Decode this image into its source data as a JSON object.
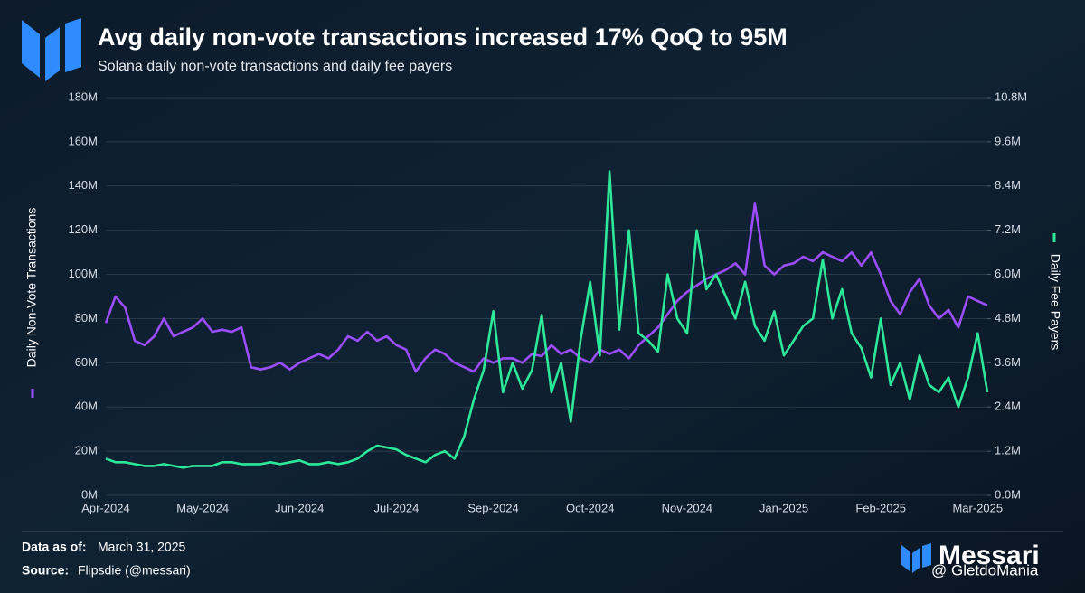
{
  "chart_data": {
    "type": "line",
    "title": "Avg daily non-vote transactions increased 17% QoQ to 95M",
    "subtitle": "Solana daily non-vote transactions and daily fee payers",
    "categories": [
      "Apr-2024",
      null,
      null,
      null,
      null,
      null,
      null,
      null,
      null,
      null,
      "May-2024",
      null,
      null,
      null,
      null,
      null,
      null,
      null,
      null,
      null,
      "Jun-2024",
      null,
      null,
      null,
      null,
      null,
      null,
      null,
      null,
      null,
      "Jul-2024",
      null,
      null,
      null,
      null,
      null,
      null,
      null,
      null,
      null,
      "Sep-2024",
      null,
      null,
      null,
      null,
      null,
      null,
      null,
      null,
      null,
      "Oct-2024",
      null,
      null,
      null,
      null,
      null,
      null,
      null,
      null,
      null,
      "Nov-2024",
      null,
      null,
      null,
      null,
      null,
      null,
      null,
      null,
      null,
      "Jan-2025",
      null,
      null,
      null,
      null,
      null,
      null,
      null,
      null,
      null,
      "Feb-2025",
      null,
      null,
      null,
      null,
      null,
      null,
      null,
      null,
      null,
      "Mar-2025",
      null
    ],
    "series": [
      {
        "name": "Daily Non-Vote Transactions",
        "color": "#9b4dff",
        "axis": "y",
        "values": [
          78,
          90,
          85,
          70,
          68,
          72,
          80,
          72,
          74,
          76,
          80,
          74,
          75,
          74,
          76,
          58,
          57,
          58,
          60,
          57,
          60,
          62,
          64,
          62,
          66,
          72,
          70,
          74,
          70,
          72,
          68,
          66,
          56,
          62,
          66,
          64,
          60,
          58,
          56,
          62,
          60,
          62,
          62,
          60,
          64,
          63,
          68,
          64,
          66,
          62,
          60,
          66,
          64,
          66,
          62,
          68,
          72,
          76,
          82,
          88,
          92,
          95,
          98,
          100,
          102,
          105,
          100,
          132,
          104,
          100,
          104,
          105,
          108,
          106,
          110,
          108,
          106,
          110,
          104,
          110,
          100,
          88,
          82,
          92,
          98,
          86,
          80,
          84,
          76,
          90,
          88,
          86
        ]
      },
      {
        "name": "Daily Fee Payers",
        "color": "#2ee89a",
        "axis": "y2",
        "values": [
          1.0,
          0.9,
          0.9,
          0.85,
          0.8,
          0.8,
          0.85,
          0.8,
          0.75,
          0.8,
          0.8,
          0.8,
          0.9,
          0.9,
          0.85,
          0.85,
          0.85,
          0.9,
          0.85,
          0.9,
          0.95,
          0.85,
          0.85,
          0.9,
          0.85,
          0.9,
          1.0,
          1.2,
          1.35,
          1.3,
          1.25,
          1.1,
          1.0,
          0.9,
          1.1,
          1.2,
          1.0,
          1.6,
          2.6,
          3.4,
          5.0,
          2.8,
          3.6,
          2.9,
          3.4,
          4.9,
          2.8,
          3.6,
          2.0,
          4.2,
          5.8,
          3.8,
          8.8,
          4.5,
          7.2,
          4.4,
          4.2,
          3.9,
          6.0,
          4.8,
          4.4,
          7.2,
          5.6,
          6.0,
          5.4,
          4.8,
          5.8,
          4.6,
          4.2,
          5.0,
          3.8,
          4.2,
          4.6,
          4.8,
          6.4,
          4.8,
          5.6,
          4.4,
          4.0,
          3.2,
          4.8,
          3.0,
          3.6,
          2.6,
          3.8,
          3.0,
          2.8,
          3.2,
          2.4,
          3.2,
          4.4,
          2.8
        ]
      }
    ],
    "ylim": [
      0,
      180
    ],
    "yticks": [
      {
        "value": 0,
        "label": "0M"
      },
      {
        "value": 20,
        "label": "20M"
      },
      {
        "value": 40,
        "label": "40M"
      },
      {
        "value": 60,
        "label": "60M"
      },
      {
        "value": 80,
        "label": "80M"
      },
      {
        "value": 100,
        "label": "100M"
      },
      {
        "value": 120,
        "label": "120M"
      },
      {
        "value": 140,
        "label": "140M"
      },
      {
        "value": 160,
        "label": "160M"
      },
      {
        "value": 180,
        "label": "180M"
      }
    ],
    "y2lim": [
      0,
      10.8
    ],
    "y2ticks": [
      {
        "value": 0,
        "label": "0.0M"
      },
      {
        "value": 1.2,
        "label": "1.2M"
      },
      {
        "value": 2.4,
        "label": "2.4M"
      },
      {
        "value": 3.6,
        "label": "3.6M"
      },
      {
        "value": 4.8,
        "label": "4.8M"
      },
      {
        "value": 6.0,
        "label": "6.0M"
      },
      {
        "value": 7.2,
        "label": "7.2M"
      },
      {
        "value": 8.4,
        "label": "8.4M"
      },
      {
        "value": 9.6,
        "label": "9.6M"
      },
      {
        "value": 10.8,
        "label": "10.8M"
      }
    ],
    "grid": true
  },
  "footer": {
    "date_label": "Data as of:",
    "date": "March 31, 2025",
    "source_label": "Source:",
    "source": "Flipsdie (@messari)",
    "brand": "Messari",
    "watermark": "@ GletdoMania"
  }
}
